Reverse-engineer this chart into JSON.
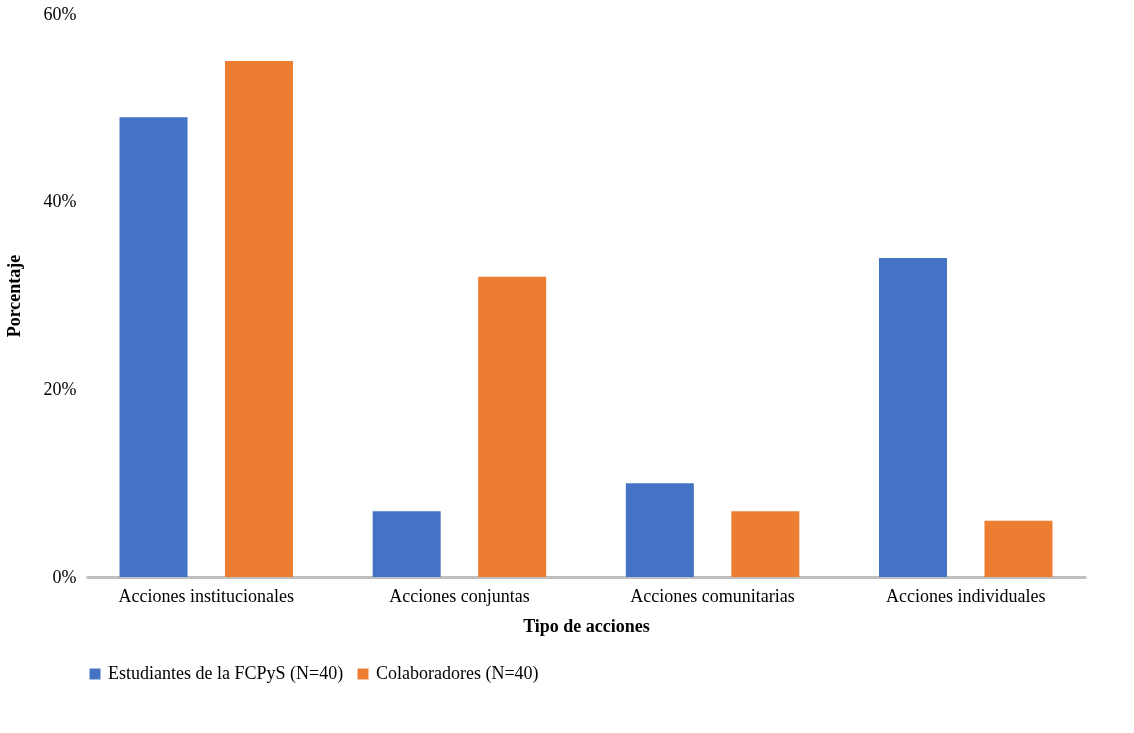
{
  "chart_data": {
    "type": "bar",
    "xlabel": "Tipo de acciones",
    "ylabel": "Porcentaje",
    "categories": [
      "Acciones institucionales",
      "Acciones conjuntas",
      "Acciones comunitarias",
      "Acciones individuales"
    ],
    "series": [
      {
        "name": "Estudiantes de la FCPyS (N=40)",
        "color": "#4472c4",
        "values": [
          49,
          7,
          10,
          34
        ]
      },
      {
        "name": "Colaboradores (N=40)",
        "color": "#ed7d31",
        "values": [
          55,
          32,
          7,
          6
        ]
      }
    ],
    "ylim": [
      0,
      60
    ],
    "yticks": [
      {
        "value": 0,
        "label": "0%"
      },
      {
        "value": 20,
        "label": "20%"
      },
      {
        "value": 40,
        "label": "40%"
      },
      {
        "value": 60,
        "label": "60%"
      }
    ],
    "grid": false,
    "legend": "bottom"
  }
}
